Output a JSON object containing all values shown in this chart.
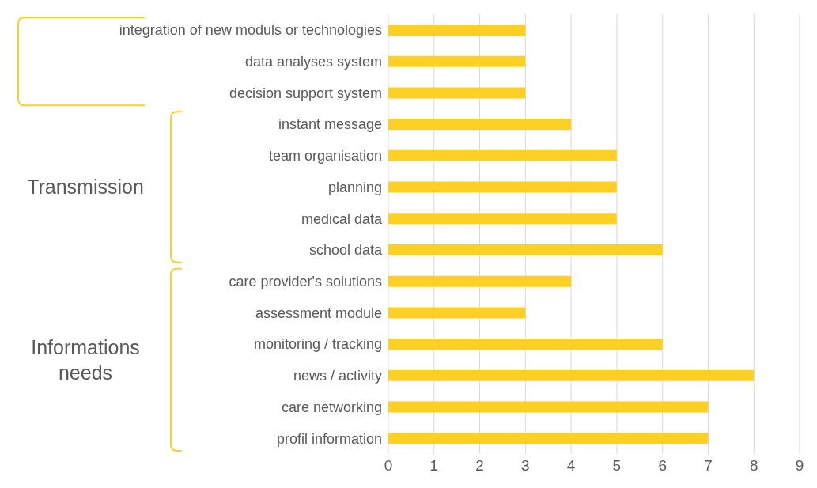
{
  "chart_data": {
    "type": "bar",
    "orientation": "horizontal",
    "categories": [
      "integration of new moduls or technologies",
      "data analyses system",
      "decision support system",
      "instant message",
      "team organisation",
      "planning",
      "medical data",
      "school data",
      "care provider's solutions",
      "assessment module",
      "monitoring / tracking",
      "news / activity",
      "care networking",
      "profil information"
    ],
    "values": [
      3,
      3,
      3,
      4,
      5,
      5,
      5,
      6,
      4,
      3,
      6,
      8,
      7,
      7
    ],
    "color": "#fed023",
    "xlim": [
      0,
      9
    ],
    "xticks": [
      0,
      1,
      2,
      3,
      4,
      5,
      6,
      7,
      8,
      9
    ],
    "grid": "x",
    "annotations": [
      "Transmission",
      "Informations needs"
    ]
  }
}
